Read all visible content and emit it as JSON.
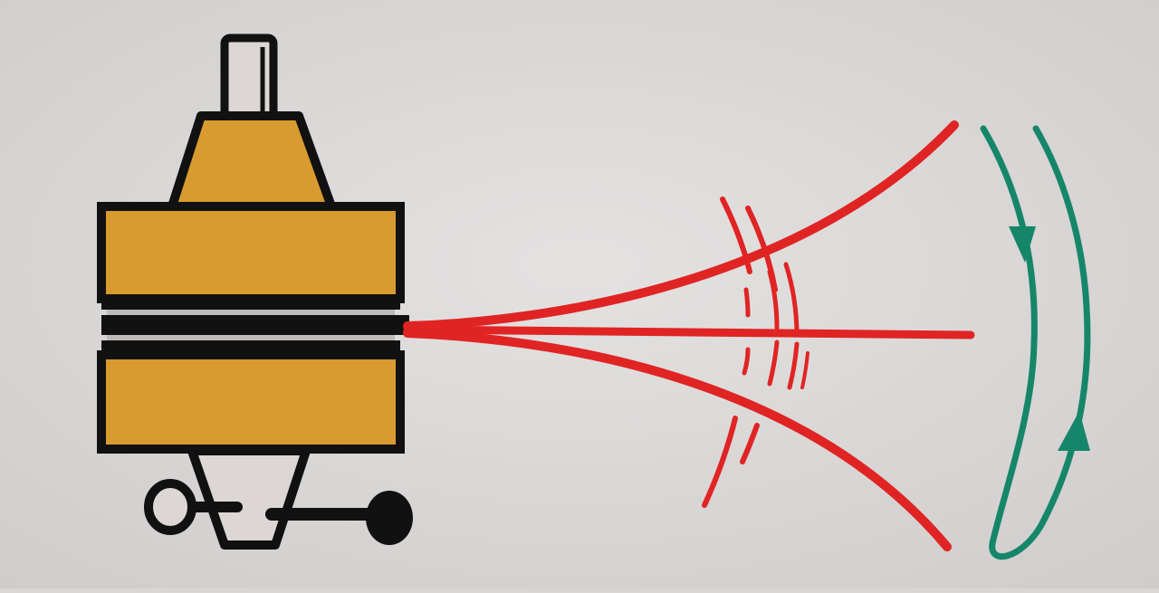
{
  "colors": {
    "paper": "#dcdad9",
    "paper_shade": "#cfcccb",
    "body_fill": "#d99a2f",
    "outline": "#111111",
    "stem_fill": "#dcd6d4",
    "beam": "#e02424",
    "return_loop": "#16866a"
  },
  "icons": {
    "source_device": "magnet-device-icon",
    "knob": "knob-icon",
    "arrow": "arrow-icon"
  }
}
